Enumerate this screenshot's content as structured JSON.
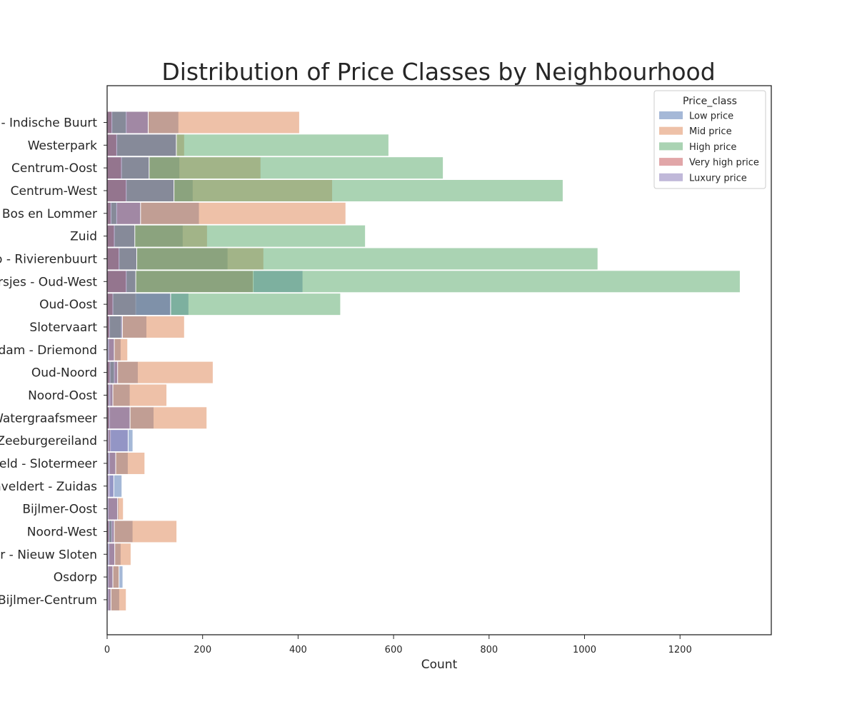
{
  "chart_data": {
    "type": "bar",
    "orientation": "horizontal",
    "overlay": "layered",
    "title": "Distribution of Price Classes by Neighbourhood",
    "xlabel": "Count",
    "ylabel": "",
    "xlim": [
      0,
      1390
    ],
    "xticks": [
      0,
      200,
      400,
      600,
      800,
      1000,
      1200
    ],
    "grid": false,
    "legend_title": "Price_class",
    "legend_position": "top-right",
    "categories": [
      "d - Indische Buurt",
      "Westerpark",
      "Centrum-Oost",
      "Centrum-West",
      "Bos en Lommer",
      "Zuid",
      "jp - Rivierenbuurt",
      "rsjes - Oud-West",
      "Oud-Oost",
      "Slotervaart",
      "rdam - Driemond",
      "Oud-Noord",
      "Noord-Oost",
      "Watergraafsmeer",
      "Zeeburgereiland",
      "veld - Slotermeer",
      "enveldert - Zuidas",
      "Bijlmer-Oost",
      "Noord-West",
      "er - Nieuw Sloten",
      "Osdorp",
      "Bijlmer-Centrum"
    ],
    "series": [
      {
        "name": "Low price",
        "color": "#4c72b0",
        "values": [
          150,
          144,
          152,
          180,
          193,
          159,
          253,
          410,
          171,
          83,
          29,
          65,
          48,
          98,
          54,
          44,
          31,
          25,
          54,
          29,
          33,
          26
        ]
      },
      {
        "name": "Mid price",
        "color": "#dd8452",
        "values": [
          403,
          162,
          322,
          472,
          500,
          210,
          328,
          306,
          60,
          162,
          43,
          222,
          125,
          209,
          7,
          79,
          5,
          34,
          146,
          50,
          25,
          40
        ]
      },
      {
        "name": "High price",
        "color": "#55a868",
        "values": [
          40,
          590,
          704,
          955,
          20,
          541,
          1028,
          1326,
          489,
          30,
          3,
          15,
          6,
          5,
          0,
          5,
          3,
          2,
          10,
          4,
          2,
          2
        ]
      },
      {
        "name": "Very high price",
        "color": "#c44e52",
        "values": [
          10,
          20,
          30,
          40,
          8,
          15,
          25,
          40,
          12,
          5,
          1,
          6,
          4,
          5,
          2,
          3,
          2,
          1,
          4,
          2,
          1,
          1
        ]
      },
      {
        "name": "Luxury price",
        "color": "#8172b3",
        "values": [
          86,
          145,
          88,
          140,
          70,
          58,
          62,
          60,
          133,
          32,
          15,
          22,
          12,
          48,
          44,
          18,
          14,
          22,
          15,
          16,
          12,
          8
        ]
      }
    ]
  }
}
